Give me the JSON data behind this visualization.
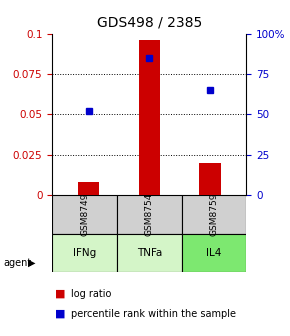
{
  "title": "GDS498 / 2385",
  "samples": [
    "GSM8749",
    "GSM8754",
    "GSM8759"
  ],
  "agents": [
    "IFNg",
    "TNFa",
    "IL4"
  ],
  "log_ratios": [
    0.008,
    0.096,
    0.02
  ],
  "percentile_ranks": [
    52,
    85,
    65
  ],
  "ylim_left": [
    0,
    0.1
  ],
  "ylim_right": [
    0,
    100
  ],
  "yticks_left": [
    0,
    0.025,
    0.05,
    0.075,
    0.1
  ],
  "yticks_right": [
    0,
    25,
    50,
    75,
    100
  ],
  "bar_color": "#cc0000",
  "dot_color": "#0000cc",
  "cell_gray": "#d0d0d0",
  "agent_colors": [
    "#d4f5c8",
    "#d4f5c8",
    "#7de870"
  ],
  "bar_width": 0.35,
  "title_fontsize": 10,
  "tick_fontsize": 7.5,
  "legend_fontsize": 7
}
